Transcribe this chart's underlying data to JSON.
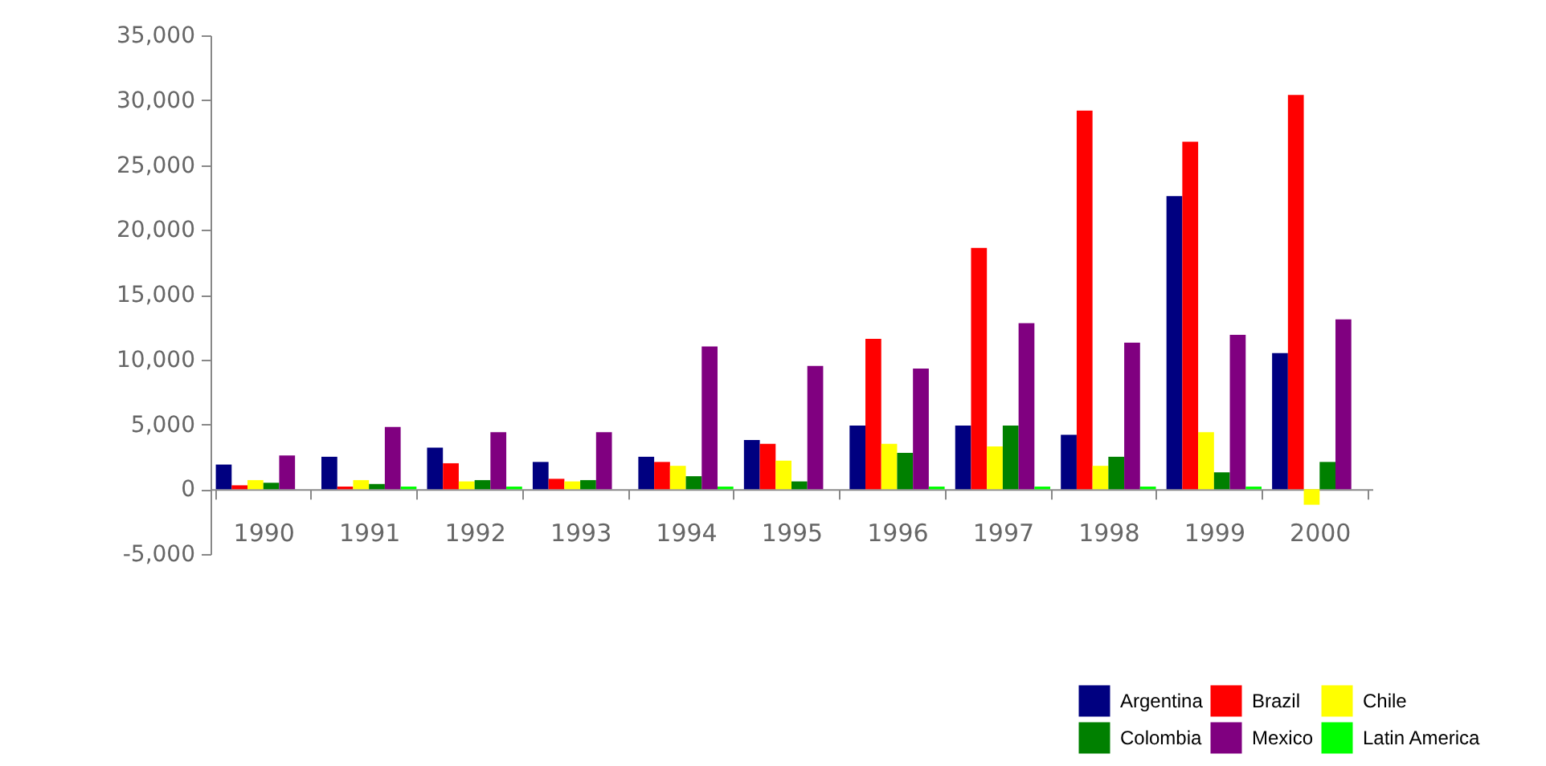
{
  "chart_data": {
    "type": "bar",
    "categories": [
      "1990",
      "1991",
      "1992",
      "1993",
      "1994",
      "1995",
      "1996",
      "1997",
      "1998",
      "1999",
      "2000"
    ],
    "series": [
      {
        "name": "Argentina",
        "color": "#000080",
        "values": [
          1900,
          2500,
          3200,
          2100,
          2500,
          3800,
          4900,
          4900,
          4200,
          22600,
          10500
        ]
      },
      {
        "name": "Brazil",
        "color": "#ff0000",
        "values": [
          300,
          200,
          2000,
          800,
          2100,
          3500,
          11600,
          18600,
          29200,
          26800,
          30400
        ]
      },
      {
        "name": "Chile",
        "color": "#ffff00",
        "values": [
          700,
          700,
          600,
          600,
          1800,
          2200,
          3500,
          3300,
          1800,
          4400,
          -1200
        ]
      },
      {
        "name": "Colombia",
        "color": "#008000",
        "values": [
          500,
          400,
          700,
          700,
          1000,
          600,
          2800,
          4900,
          2500,
          1300,
          2100
        ]
      },
      {
        "name": "Mexico",
        "color": "#800080",
        "values": [
          2600,
          4800,
          4400,
          4400,
          11000,
          9500,
          9300,
          12800,
          11300,
          11900,
          13100
        ]
      },
      {
        "name": "Latin America",
        "color": "#00ff00",
        "values": [
          0,
          200,
          200,
          0,
          200,
          0,
          200,
          200,
          200,
          200,
          0
        ]
      }
    ],
    "ylim": [
      -5000,
      35000
    ],
    "yticks": [
      {
        "value": -5000,
        "label": "-5,000"
      },
      0,
      {
        "value": 5000,
        "label": "5,000"
      },
      {
        "value": 10000,
        "label": "10,000"
      },
      {
        "value": 15000,
        "label": "15,000"
      },
      {
        "value": 20000,
        "label": "20,000"
      },
      {
        "value": 25000,
        "label": "25,000"
      },
      {
        "value": 30000,
        "label": "30,000"
      },
      {
        "value": 35000,
        "label": "35,000"
      }
    ],
    "grid": false,
    "legend": "bottom right"
  }
}
